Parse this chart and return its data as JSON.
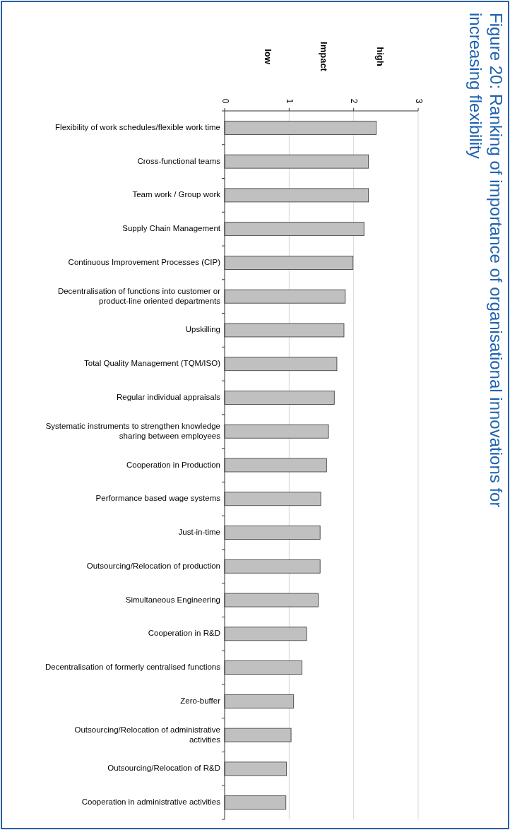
{
  "chart_data": {
    "type": "bar",
    "orientation": "horizontal",
    "title": "Figure 20:  Ranking of importance of organisational innovations for increasing flexibility",
    "annotations": [
      "low",
      "Impact",
      "high"
    ],
    "categories": [
      "Flexibility of work schedules/flexible work time",
      "Cross-functional teams",
      "Team work / Group work",
      "Supply Chain Management",
      "Continuous Improvement Processes (CIP)",
      "Decentralisation of functions into customer or\nproduct-line oriented departments",
      "Upskilling",
      "Total Quality Management (TQM/ISO)",
      "Regular individual appraisals",
      "Systematic instruments to strengthen knowledge\nsharing between employees",
      "Cooperation in Production",
      "Performance based wage systems",
      "Just-in-time",
      "Outsourcing/Relocation of production",
      "Simultaneous Engineering",
      "Cooperation in R&D",
      "Decentralisation of formerly centralised functions",
      "Zero-buffer",
      "Outsourcing/Relocation of administrative\nactivities",
      "Outsourcing/Relocation of R&D",
      "Cooperation in administrative activities"
    ],
    "values": [
      2.35,
      2.23,
      2.23,
      2.16,
      1.99,
      1.87,
      1.85,
      1.74,
      1.7,
      1.61,
      1.58,
      1.49,
      1.48,
      1.48,
      1.45,
      1.27,
      1.2,
      1.07,
      1.03,
      0.96,
      0.95
    ],
    "color": "#c0c0c0",
    "xlim": [
      0,
      3
    ],
    "xticks": [
      0,
      1,
      2,
      3
    ],
    "grid": "x"
  }
}
